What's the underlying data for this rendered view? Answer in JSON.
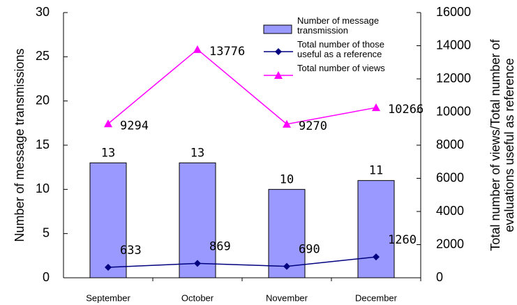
{
  "chart_data": {
    "type": "bar",
    "categories": [
      "September",
      "October",
      "November",
      "December"
    ],
    "ylabel": "Number of message transmissions",
    "y2label": "Total number of views/Total number of evaluations useful as reference",
    "ylim": [
      0,
      30
    ],
    "yticks": [
      0,
      5,
      10,
      15,
      20,
      25,
      30
    ],
    "y2lim": [
      0,
      16000
    ],
    "y2ticks": [
      0,
      2000,
      4000,
      6000,
      8000,
      10000,
      12000,
      14000,
      16000
    ],
    "legend": "upper right",
    "grid": false,
    "series": [
      {
        "name": "Number of message transmission",
        "type": "bar",
        "color": "#9999ff",
        "values": [
          13,
          13,
          10,
          11
        ]
      },
      {
        "name": "Total number of those useful as a reference",
        "type": "line",
        "marker": "diamond",
        "axis": "y2",
        "color": "#000080",
        "values": [
          633,
          869,
          690,
          1260
        ]
      },
      {
        "name": "Total number of views",
        "type": "line",
        "marker": "triangle",
        "axis": "y2",
        "color": "#ff00ff",
        "values": [
          9294,
          13776,
          9270,
          10266
        ]
      }
    ]
  }
}
